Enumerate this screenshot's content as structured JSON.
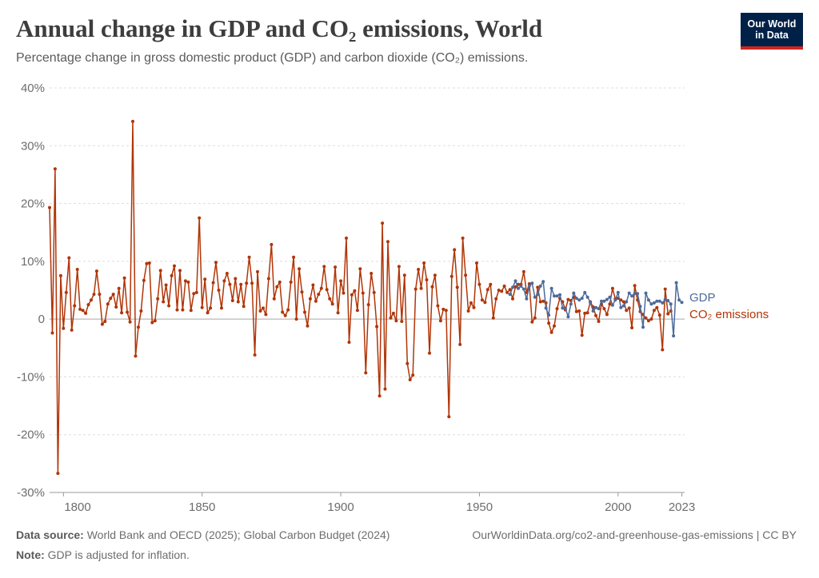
{
  "header": {
    "title": "Annual change in GDP and CO₂ emissions, World",
    "subtitle": "Percentage change in gross domestic product (GDP) and carbon dioxide (CO₂) emissions.",
    "logo_line1": "Our World",
    "logo_line2": "in Data"
  },
  "footer": {
    "source_label": "Data source:",
    "source_text": "World Bank and OECD (2025); Global Carbon Budget (2024)",
    "url": "OurWorldinData.org/co2-and-greenhouse-gas-emissions | CC BY",
    "note_label": "Note:",
    "note_text": "GDP is adjusted for inflation."
  },
  "colors": {
    "gdp": "#4c6a9c",
    "co2": "#b13507",
    "grid": "#dddddd",
    "zero": "#a8a8a8"
  },
  "chart_data": {
    "type": "line",
    "xlim": [
      1795,
      2024
    ],
    "ylim": [
      -30,
      40
    ],
    "x_ticks": [
      1800,
      1850,
      1900,
      1950,
      2000,
      2023
    ],
    "x_tick_labels": [
      "1800",
      "1850",
      "1900",
      "1950",
      "2000",
      "2023"
    ],
    "y_ticks": [
      -30,
      -20,
      -10,
      0,
      10,
      20,
      30,
      40
    ],
    "y_tick_labels": [
      "-30%",
      "-20%",
      "-10%",
      "0",
      "10%",
      "20%",
      "30%",
      "40%"
    ],
    "grid": "horizontal",
    "series": [
      {
        "name": "CO₂ emissions",
        "key": "co2",
        "x_start": 1795,
        "values": [
          19.3,
          -2.4,
          26.0,
          -26.7,
          7.5,
          -1.6,
          4.6,
          10.6,
          -1.9,
          2.3,
          8.6,
          1.7,
          1.5,
          1.0,
          2.5,
          3.3,
          4.3,
          8.3,
          4.3,
          -0.9,
          -0.4,
          2.6,
          3.6,
          4.3,
          2.1,
          5.3,
          1.1,
          7.1,
          1.2,
          -0.5,
          34.2,
          -6.4,
          -1.4,
          1.4,
          6.7,
          9.6,
          9.7,
          -0.6,
          -0.3,
          3.5,
          8.4,
          3.0,
          5.9,
          2.3,
          7.5,
          9.2,
          1.6,
          8.4,
          1.6,
          6.6,
          6.4,
          1.5,
          4.4,
          4.6,
          17.5,
          2.0,
          6.9,
          1.1,
          1.9,
          6.3,
          9.8,
          5.0,
          1.9,
          6.6,
          7.9,
          6.0,
          3.2,
          7.0,
          3.0,
          6.0,
          2.2,
          6.2,
          10.7,
          6.2,
          -6.2,
          8.2,
          1.4,
          1.9,
          0.8,
          7.0,
          12.9,
          3.5,
          5.6,
          6.4,
          1.2,
          0.6,
          1.6,
          6.4,
          10.7,
          0.0,
          8.7,
          4.7,
          1.2,
          -1.2,
          3.5,
          5.9,
          3.1,
          4.3,
          5.3,
          9.1,
          5.1,
          3.5,
          2.6,
          9.0,
          1.1,
          6.6,
          4.5,
          14.0,
          -4.0,
          4.2,
          4.9,
          1.5,
          8.7,
          4.5,
          -9.3,
          2.5,
          7.9,
          4.6,
          -1.3,
          -13.3,
          16.6,
          -12.1,
          13.4,
          0.2,
          1.0,
          -0.3,
          9.1,
          -0.4,
          7.6,
          -7.7,
          -10.5,
          -9.7,
          5.2,
          8.6,
          5.3,
          9.7,
          6.8,
          -5.9,
          5.6,
          7.6,
          2.3,
          -0.3,
          1.7,
          1.5,
          -16.9,
          7.4,
          12.0,
          5.5,
          -4.4,
          14.0,
          7.6,
          1.4,
          2.8,
          2.0,
          9.7,
          6.0,
          3.3,
          2.9,
          5.1,
          6.0,
          0.2,
          3.5,
          5.0,
          4.8,
          5.7,
          4.6,
          5.1,
          3.5,
          5.6,
          6.0,
          6.0,
          8.2,
          4.6,
          6.1,
          -0.5,
          0.2,
          5.5,
          3.0,
          3.1,
          2.8,
          -0.7,
          -2.3,
          -1.2,
          1.8,
          3.6,
          3.0,
          1.6,
          3.4,
          3.2,
          3.8,
          1.3,
          1.4,
          -2.8,
          1.0,
          1.1,
          3.0,
          2.1,
          0.6,
          -0.4,
          2.6,
          1.8,
          0.8,
          2.6,
          5.3,
          3.5,
          3.6,
          3.3,
          3.0,
          1.5,
          1.9,
          -1.5,
          5.8,
          3.3,
          1.3,
          0.8,
          0.2,
          -0.3,
          0.0,
          1.5,
          2.0,
          0.7,
          -5.3,
          5.2,
          0.9,
          1.4
        ]
      },
      {
        "name": "GDP",
        "key": "gdp",
        "x_start": 1961,
        "values": [
          4.3,
          5.5,
          6.6,
          5.3,
          5.7,
          5.2,
          3.5,
          5.7,
          6.2,
          3.8,
          4.3,
          5.7,
          6.5,
          1.9,
          0.7,
          5.3,
          4.0,
          4.0,
          4.2,
          1.9,
          1.9,
          0.4,
          2.6,
          4.5,
          3.6,
          3.3,
          3.6,
          4.6,
          3.8,
          2.9,
          1.4,
          2.0,
          1.8,
          3.1,
          3.1,
          3.4,
          3.8,
          2.4,
          3.3,
          4.6,
          2.0,
          2.3,
          3.0,
          4.5,
          4.0,
          4.4,
          4.4,
          2.2,
          -1.4,
          4.5,
          3.3,
          2.6,
          2.8,
          3.1,
          3.1,
          2.8,
          3.4,
          3.2,
          2.6,
          -2.9,
          6.3,
          3.3,
          2.9
        ]
      }
    ]
  }
}
